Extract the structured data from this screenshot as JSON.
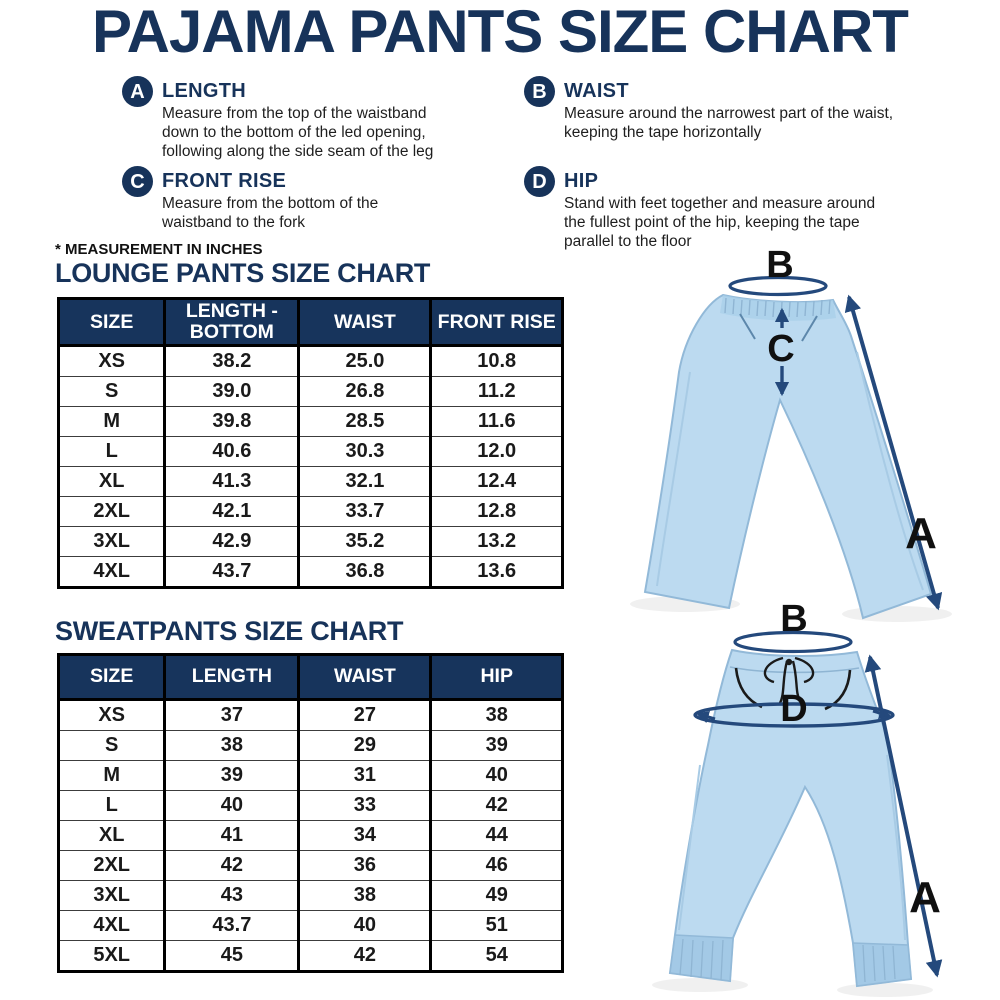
{
  "title": "PAJAMA PANTS SIZE CHART",
  "units_note": "* MEASUREMENT IN INCHES",
  "definitions": [
    {
      "letter": "A",
      "title": "LENGTH",
      "description": "Measure from the top of the waistband down to the bottom of the led opening, following along the side seam of the leg"
    },
    {
      "letter": "B",
      "title": "WAIST",
      "description": "Measure around the narrowest part of the waist, keeping the tape horizontally"
    },
    {
      "letter": "C",
      "title": "FRONT RISE",
      "description": "Measure from the bottom of the waistband to the fork"
    },
    {
      "letter": "D",
      "title": "HIP",
      "description": "Stand with feet together and measure around the fullest point of the hip, keeping the tape parallel to the floor"
    }
  ],
  "lounge_table": {
    "title": "LOUNGE PANTS SIZE CHART",
    "headers": [
      "SIZE",
      "LENGTH - BOTTOM",
      "WAIST",
      "FRONT RISE"
    ],
    "rows": [
      [
        "XS",
        "38.2",
        "25.0",
        "10.8"
      ],
      [
        "S",
        "39.0",
        "26.8",
        "11.2"
      ],
      [
        "M",
        "39.8",
        "28.5",
        "11.6"
      ],
      [
        "L",
        "40.6",
        "30.3",
        "12.0"
      ],
      [
        "XL",
        "41.3",
        "32.1",
        "12.4"
      ],
      [
        "2XL",
        "42.1",
        "33.7",
        "12.8"
      ],
      [
        "3XL",
        "42.9",
        "35.2",
        "13.2"
      ],
      [
        "4XL",
        "43.7",
        "36.8",
        "13.6"
      ]
    ]
  },
  "sweatpants_table": {
    "title": "SWEATPANTS SIZE CHART",
    "headers": [
      "SIZE",
      "LENGTH",
      "WAIST",
      "HIP"
    ],
    "rows": [
      [
        "XS",
        "37",
        "27",
        "38"
      ],
      [
        "S",
        "38",
        "29",
        "39"
      ],
      [
        "M",
        "39",
        "31",
        "40"
      ],
      [
        "L",
        "40",
        "33",
        "42"
      ],
      [
        "XL",
        "41",
        "34",
        "44"
      ],
      [
        "2XL",
        "42",
        "36",
        "46"
      ],
      [
        "3XL",
        "43",
        "38",
        "49"
      ],
      [
        "4XL",
        "43.7",
        "40",
        "51"
      ],
      [
        "5XL",
        "45",
        "42",
        "54"
      ]
    ]
  },
  "diagrams": {
    "lounge_pants": {
      "label_waist": "B",
      "label_front_rise": "C",
      "label_length": "A"
    },
    "sweatpants": {
      "label_waist": "B",
      "label_hip": "D",
      "label_length": "A"
    }
  },
  "colors": {
    "navy": "#17335A",
    "arrow_blue": "#24497C",
    "pants_fill": "#BCDAF0",
    "pants_outline": "#92B9D8",
    "label_black": "#101010"
  }
}
